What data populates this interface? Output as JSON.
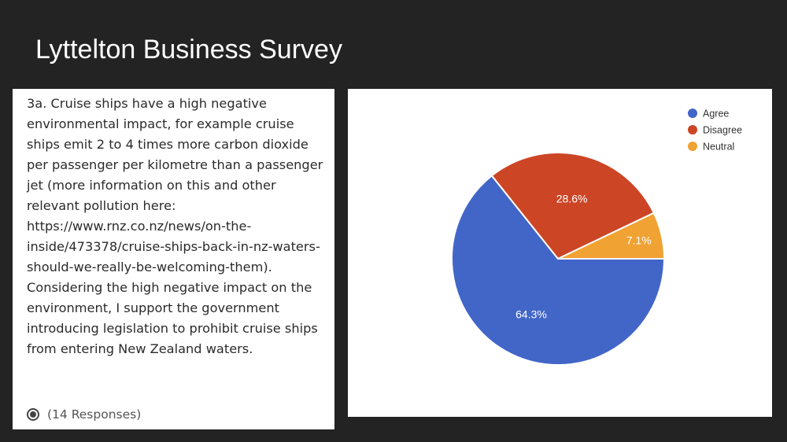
{
  "slide": {
    "title": "Lyttelton Business Survey"
  },
  "question": {
    "text": "3a. Cruise ships have a high negative environmental impact, for example cruise ships emit 2 to 4 times more carbon dioxide per passenger per kilometre than a passenger jet (more information on this and other relevant pollution here: https://www.rnz.co.nz/news/on-the-inside/473378/cruise-ships-back-in-nz-waters-should-we-really-be-welcoming-them). Considering the high negative impact on the environment, I support the government introducing legislation to prohibit cruise ships from entering New Zealand waters.",
    "responses": "(14 Responses)"
  },
  "chart_data": {
    "type": "pie",
    "categories": [
      "Agree",
      "Disagree",
      "Neutral"
    ],
    "values": [
      64.3,
      28.6,
      7.1
    ],
    "data_labels": [
      "64.3%",
      "28.6%",
      "7.1%"
    ],
    "colors": [
      "#4266c8",
      "#cc4525",
      "#f0a232"
    ],
    "legend_position": "top-right",
    "start_angle_deg": 0,
    "direction": "clockwise"
  }
}
